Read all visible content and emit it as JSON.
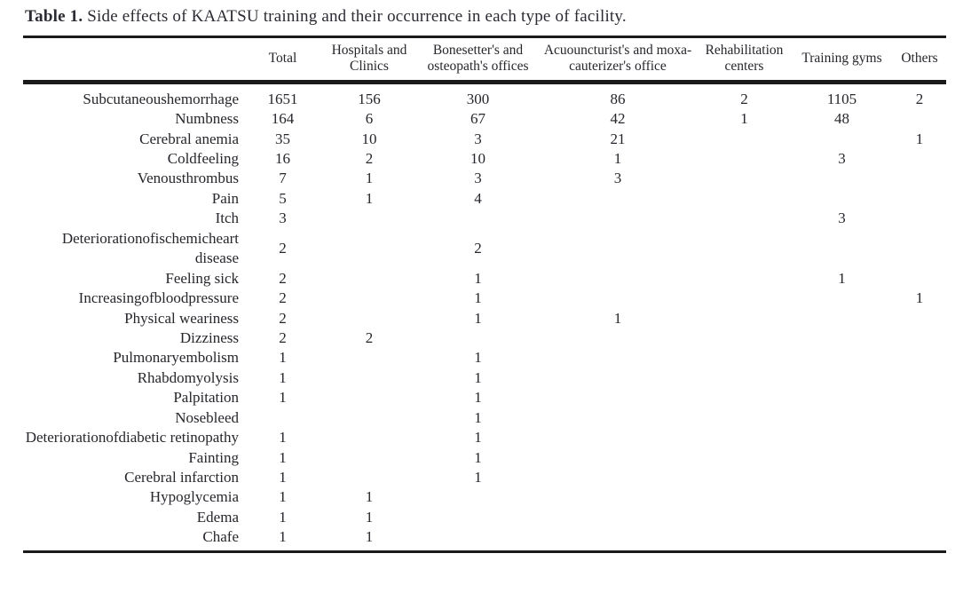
{
  "caption": {
    "label": "Table 1.",
    "text": " Side effects of KAATSU training and their occurrence in each type of facility."
  },
  "table": {
    "row_header": "",
    "columns": [
      "Total",
      "Hospitals and Clinics",
      "Bonesetter's and osteopath's offices",
      "Acuouncturist's and moxa-cauterizer's office",
      "Rehabilitation centers",
      "Training gyms",
      "Others"
    ],
    "rows": [
      {
        "label": "Subcutaneoushemorrhage",
        "values": [
          "1651",
          "156",
          "300",
          "86",
          "2",
          "1105",
          "2"
        ]
      },
      {
        "label": "Numbness",
        "values": [
          "164",
          "6",
          "67",
          "42",
          "1",
          "48",
          ""
        ]
      },
      {
        "label": "Cerebral anemia",
        "values": [
          "35",
          "10",
          "3",
          "21",
          "",
          "",
          "1"
        ]
      },
      {
        "label": "Coldfeeling",
        "values": [
          "16",
          "2",
          "10",
          "1",
          "",
          "3",
          ""
        ]
      },
      {
        "label": "Venousthrombus",
        "values": [
          "7",
          "1",
          "3",
          "3",
          "",
          "",
          ""
        ]
      },
      {
        "label": "Pain",
        "values": [
          "5",
          "1",
          "4",
          "",
          "",
          "",
          ""
        ]
      },
      {
        "label": "Itch",
        "values": [
          "3",
          "",
          "",
          "",
          "",
          "3",
          ""
        ]
      },
      {
        "label": "Deteriorationofischemicheart disease",
        "values": [
          "2",
          "",
          "2",
          "",
          "",
          "",
          ""
        ]
      },
      {
        "label": "Feeling sick",
        "values": [
          "2",
          "",
          "1",
          "",
          "",
          "1",
          ""
        ]
      },
      {
        "label": "Increasingofbloodpressure",
        "values": [
          "2",
          "",
          "1",
          "",
          "",
          "",
          "1"
        ]
      },
      {
        "label": "Physical weariness",
        "values": [
          "2",
          "",
          "1",
          "1",
          "",
          "",
          ""
        ]
      },
      {
        "label": "Dizziness",
        "values": [
          "2",
          "2",
          "",
          "",
          "",
          "",
          ""
        ]
      },
      {
        "label": "Pulmonaryembolism",
        "values": [
          "1",
          "",
          "1",
          "",
          "",
          "",
          ""
        ]
      },
      {
        "label": "Rhabdomyolysis",
        "values": [
          "1",
          "",
          "1",
          "",
          "",
          "",
          ""
        ]
      },
      {
        "label": "Palpitation",
        "values": [
          "1",
          "",
          "1",
          "",
          "",
          "",
          ""
        ]
      },
      {
        "label": "Nosebleed",
        "values": [
          "",
          "",
          "1",
          "",
          "",
          "",
          ""
        ]
      },
      {
        "label": "Deteriorationofdiabetic retinopathy",
        "values": [
          "1",
          "",
          "1",
          "",
          "",
          "",
          ""
        ]
      },
      {
        "label": "Fainting",
        "values": [
          "1",
          "",
          "1",
          "",
          "",
          "",
          ""
        ]
      },
      {
        "label": "Cerebral infarction",
        "values": [
          "1",
          "",
          "1",
          "",
          "",
          "",
          ""
        ]
      },
      {
        "label": "Hypoglycemia",
        "values": [
          "1",
          "1",
          "",
          "",
          "",
          "",
          ""
        ]
      },
      {
        "label": "Edema",
        "values": [
          "1",
          "1",
          "",
          "",
          "",
          "",
          ""
        ]
      },
      {
        "label": "Chafe",
        "values": [
          "1",
          "1",
          "",
          "",
          "",
          "",
          ""
        ]
      }
    ]
  },
  "colors": {
    "rule": "#1b1b1b",
    "text": "#26262c",
    "background": "#ffffff"
  }
}
